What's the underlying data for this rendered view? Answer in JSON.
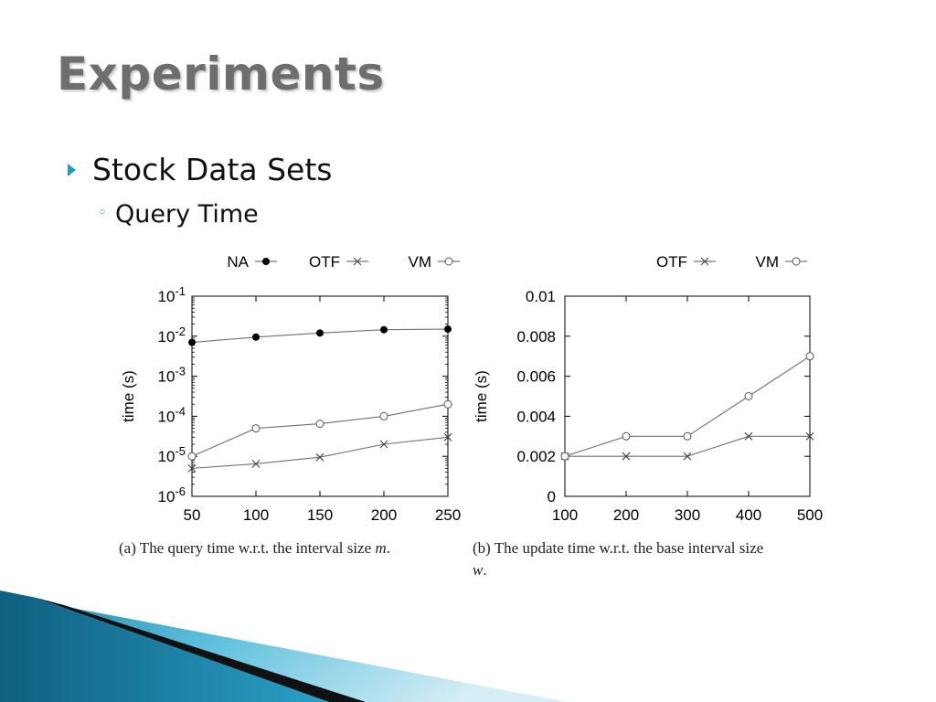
{
  "slide": {
    "title": "Experiments",
    "bullet1": "Stock Data Sets",
    "bullet2": "Query Time"
  },
  "colors": {
    "accent": "#1f9bc1",
    "title": "#6e6e6e",
    "series_line": "#707070"
  },
  "icons": {
    "bullet1": "triangle-right-icon",
    "bullet2": "ring-icon"
  },
  "chart_data": [
    {
      "type": "line",
      "ylabel": "time (s)",
      "y_scale": "log",
      "ylim": [
        1e-06,
        0.1
      ],
      "y_tick_labels": [
        {
          "base": "10",
          "exp": "-1",
          "value": 0.1
        },
        {
          "base": "10",
          "exp": "-2",
          "value": 0.01
        },
        {
          "base": "10",
          "exp": "-3",
          "value": 0.001
        },
        {
          "base": "10",
          "exp": "-4",
          "value": 0.0001
        },
        {
          "base": "10",
          "exp": "-5",
          "value": 1e-05
        },
        {
          "base": "10",
          "exp": "-6",
          "value": 1e-06
        }
      ],
      "x": [
        50,
        100,
        150,
        200,
        250
      ],
      "x_tick_labels": [
        "50",
        "100",
        "150",
        "200",
        "250"
      ],
      "legend_position": "top",
      "series": [
        {
          "name": "NA",
          "marker": "filled-circle",
          "values": [
            0.007,
            0.0095,
            0.012,
            0.0145,
            0.015
          ]
        },
        {
          "name": "OTF",
          "marker": "cross",
          "values": [
            5e-06,
            6.5e-06,
            9.5e-06,
            2e-05,
            3e-05
          ]
        },
        {
          "name": "VM",
          "marker": "open-circle",
          "values": [
            1e-05,
            5e-05,
            6.5e-05,
            0.0001,
            0.0002
          ]
        }
      ],
      "caption": {
        "prefix": "(a)  The query time w.r.t. the interval size ",
        "var": "m",
        "suffix": "."
      }
    },
    {
      "type": "line",
      "ylabel": "time (s)",
      "ylim": [
        0,
        0.01
      ],
      "y_tick_labels": [
        {
          "label": "0.01",
          "value": 0.01
        },
        {
          "label": "0.008",
          "value": 0.008
        },
        {
          "label": "0.006",
          "value": 0.006
        },
        {
          "label": "0.004",
          "value": 0.004
        },
        {
          "label": "0.002",
          "value": 0.002
        },
        {
          "label": "0",
          "value": 0
        }
      ],
      "x": [
        100,
        200,
        300,
        400,
        500
      ],
      "x_tick_labels": [
        "100",
        "200",
        "300",
        "400",
        "500"
      ],
      "legend_position": "top",
      "series": [
        {
          "name": "OTF",
          "marker": "cross",
          "values": [
            0.002,
            0.002,
            0.002,
            0.003,
            0.003
          ]
        },
        {
          "name": "VM",
          "marker": "open-circle",
          "values": [
            0.002,
            0.003,
            0.003,
            0.005,
            0.007
          ]
        }
      ],
      "caption": {
        "prefix": "(b)  The update time w.r.t. the base interval size",
        "var": "w",
        "suffix": "."
      }
    }
  ]
}
